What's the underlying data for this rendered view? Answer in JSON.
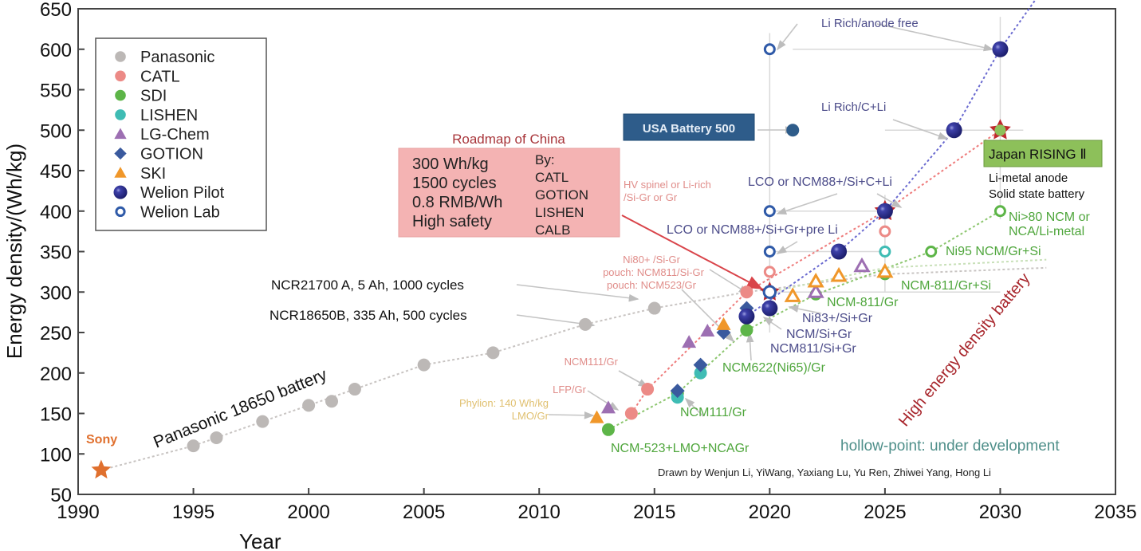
{
  "chart_data": {
    "type": "scatter",
    "title": "",
    "xlabel": "Year",
    "ylabel": "Energy density/(Wh/kg)",
    "xlim": [
      1990,
      2035
    ],
    "ylim": [
      50,
      650
    ],
    "xticks": [
      1990,
      1995,
      2000,
      2005,
      2010,
      2015,
      2020,
      2025,
      2030,
      2035
    ],
    "yticks": [
      50,
      100,
      150,
      200,
      250,
      300,
      350,
      400,
      450,
      500,
      550,
      600,
      650
    ],
    "grid": false,
    "legend_position": "top-left",
    "legend": [
      {
        "name": "Panasonic",
        "marker": "circle",
        "color": "#bcb8b6"
      },
      {
        "name": "CATL",
        "marker": "circle",
        "color": "#ec8a86"
      },
      {
        "name": "SDI",
        "marker": "circle",
        "color": "#5db548"
      },
      {
        "name": "LISHEN",
        "marker": "circle",
        "color": "#3fbcb4"
      },
      {
        "name": "LG-Chem",
        "marker": "triangle",
        "color": "#9d6fb2"
      },
      {
        "name": "GOTION",
        "marker": "diamond",
        "color": "#3a5a9e"
      },
      {
        "name": "SKI",
        "marker": "triangle",
        "color": "#f0972a"
      },
      {
        "name": "Welion Pilot",
        "marker": "sphere",
        "color": "#2e3190"
      },
      {
        "name": "Welion Lab",
        "marker": "ring",
        "color": "#2f5aa8"
      }
    ],
    "series": [
      {
        "name": "Sony",
        "marker": "star",
        "color": "#e0702e",
        "points": [
          [
            1991,
            80
          ]
        ]
      },
      {
        "name": "Panasonic",
        "marker": "circle",
        "color": "#bcb8b6",
        "points": [
          [
            1995,
            110
          ],
          [
            1996,
            120
          ],
          [
            1998,
            140
          ],
          [
            2000,
            160
          ],
          [
            2001,
            165
          ],
          [
            2002,
            180
          ],
          [
            2005,
            210
          ],
          [
            2008,
            225
          ],
          [
            2012,
            260
          ],
          [
            2015,
            280
          ]
        ]
      },
      {
        "name": "CATL",
        "marker": "circle",
        "color": "#ec8a86",
        "points": [
          [
            2014,
            150
          ],
          [
            2014.7,
            180
          ],
          [
            2019,
            300
          ]
        ]
      },
      {
        "name": "CATL (under development)",
        "marker": "ring",
        "color": "#ec8a86",
        "points": [
          [
            2020,
            325
          ],
          [
            2025,
            375
          ]
        ]
      },
      {
        "name": "SDI",
        "marker": "circle",
        "color": "#5db548",
        "points": [
          [
            2013,
            130
          ],
          [
            2016,
            175
          ],
          [
            2019,
            253
          ]
        ]
      },
      {
        "name": "SDI (under development)",
        "marker": "ring",
        "color": "#5db548",
        "points": [
          [
            2022,
            297
          ],
          [
            2025,
            322
          ],
          [
            2027,
            350
          ],
          [
            2030,
            400
          ]
        ]
      },
      {
        "name": "LISHEN",
        "marker": "circle",
        "color": "#3fbcb4",
        "points": [
          [
            2016,
            170
          ],
          [
            2017,
            200
          ]
        ]
      },
      {
        "name": "LISHEN (under development)",
        "marker": "ring",
        "color": "#3fbcb4",
        "points": [
          [
            2025,
            350
          ]
        ]
      },
      {
        "name": "LG-Chem",
        "marker": "triangle",
        "color": "#9d6fb2",
        "points": [
          [
            2013,
            157
          ],
          [
            2016.5,
            238
          ],
          [
            2017.3,
            252
          ]
        ]
      },
      {
        "name": "LG-Chem (under development)",
        "marker": "triangle-hollow",
        "color": "#9d6fb2",
        "points": [
          [
            2022,
            300
          ],
          [
            2024,
            332
          ]
        ]
      },
      {
        "name": "GOTION",
        "marker": "diamond",
        "color": "#3a5a9e",
        "points": [
          [
            2016,
            178
          ],
          [
            2017,
            210
          ],
          [
            2018,
            250
          ],
          [
            2019,
            280
          ]
        ]
      },
      {
        "name": "SKI",
        "marker": "triangle",
        "color": "#f0972a",
        "points": [
          [
            2012.5,
            145
          ],
          [
            2018,
            260
          ]
        ]
      },
      {
        "name": "SKI (under development)",
        "marker": "triangle-hollow",
        "color": "#f0972a",
        "points": [
          [
            2021,
            295
          ],
          [
            2022,
            313
          ],
          [
            2023,
            320
          ],
          [
            2025,
            325
          ]
        ]
      },
      {
        "name": "Welion Pilot",
        "marker": "sphere",
        "color": "#2e3190",
        "points": [
          [
            2019,
            270
          ],
          [
            2020,
            280
          ],
          [
            2023,
            350
          ],
          [
            2025,
            400
          ],
          [
            2028,
            500
          ],
          [
            2030,
            600
          ]
        ]
      },
      {
        "name": "Welion Lab",
        "marker": "ring",
        "color": "#2f5aa8",
        "points": [
          [
            2020,
            300
          ],
          [
            2020,
            350
          ],
          [
            2020,
            400
          ],
          [
            2020,
            600
          ]
        ]
      },
      {
        "name": "USA Battery 500",
        "marker": "circle",
        "color": "#2e5c8a",
        "points": [
          [
            2021,
            500
          ]
        ]
      },
      {
        "name": "Japan RISING II",
        "marker": "star",
        "color": "#c0282d",
        "points": [
          [
            2030,
            500
          ]
        ]
      }
    ],
    "annotations": {
      "sony": "Sony",
      "panasonic_18650": "Panasonic 18650 battery",
      "ncr18650b": "NCR18650B, 335 Ah, 500 cycles",
      "ncr21700": "NCR21700 A, 5 Ah, 1000 cycles",
      "phylion_1": "Phylion: 140 Wh/kg",
      "phylion_2": "LMO/Gr",
      "lfp_gr": "LFP/Gr",
      "ncm111_gr_catl": "NCM111/Gr",
      "ni80_1": "Ni80+ /Si-Gr",
      "ni80_2": "pouch: NCM811/Si-Gr",
      "ni80_3": "pouch: NCM523/Gr",
      "hv_spinel_1": "HV spinel or Li-rich",
      "hv_spinel_2": "/Si-Gr or Gr",
      "ncm523_lmo": "NCM-523+LMO+NCAGr",
      "ncm111_gr_sdi": "NCM111/Gr",
      "ncm622": "NCM622(Ni65)/Gr",
      "ncm811_si_gr": "NCM811/Si+Gr",
      "ncm_si_gr": "NCM/Si+Gr",
      "ni83_si_gr": "Ni83+/Si+Gr",
      "ncm811_gr": "NCM-811/Gr",
      "ncm811_gr_si": "NCM-811/Gr+Si",
      "ni95": "Ni95 NCM/Gr+Si",
      "ni80_ncm_1": "Ni>80 NCM or",
      "ni80_ncm_2": "NCA/Li-metal",
      "lco_pre_li": "LCO or NCM88+/Si+Gr+pre Li",
      "lco_c_li": "LCO or NCM88+/Si+C+Li",
      "li_rich_c_li": "Li Rich/C+Li",
      "li_rich_anode_free": "Li Rich/anode free",
      "usa_battery_500": "USA Battery 500",
      "japan_rising": "Japan RISING Ⅱ",
      "japan_note_1": "Li-metal anode",
      "japan_note_2": "Solid state battery",
      "roadmap_title": "Roadmap of China",
      "roadmap_left": [
        "300 Wh/kg",
        "1500 cycles",
        "0.8 RMB/Wh",
        "High safety"
      ],
      "roadmap_right": [
        "By:",
        "CATL",
        "GOTION",
        "LISHEN",
        "CALB"
      ],
      "high_energy": "High energy density battery",
      "hollow_point": "hollow-point: under development",
      "credit": "Drawn by Wenjun Li, YiWang, Yaxiang Lu, Yu Ren, Zhiwei Yang, Hong Li"
    }
  }
}
